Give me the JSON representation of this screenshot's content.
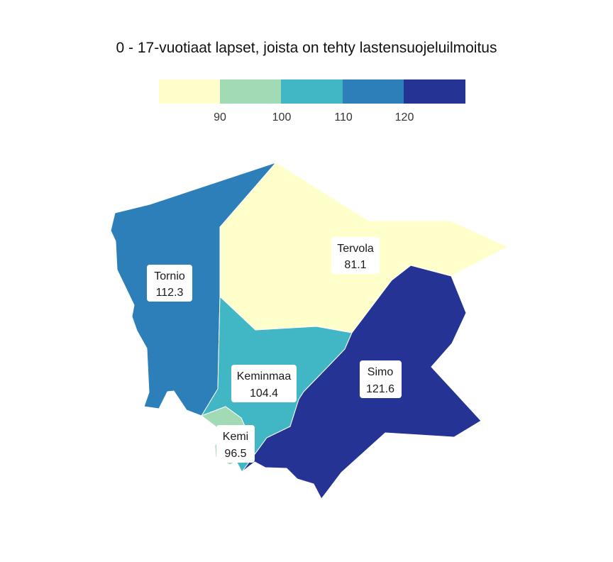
{
  "title": "0 - 17-vuotiaat lapset, joista on tehty lastensuojeluilmoitus",
  "legend": {
    "bins": [
      {
        "color": "#ffffcc"
      },
      {
        "color": "#a1dab4"
      },
      {
        "color": "#41b6c4"
      },
      {
        "color": "#2c7fb8"
      },
      {
        "color": "#253494"
      }
    ],
    "ticks": [
      "90",
      "100",
      "110",
      "120"
    ]
  },
  "regions": [
    {
      "name": "Tornio",
      "value": "112.3",
      "color": "#2c7fb8"
    },
    {
      "name": "Tervola",
      "value": "81.1",
      "color": "#ffffcc"
    },
    {
      "name": "Keminmaa",
      "value": "104.4",
      "color": "#41b6c4"
    },
    {
      "name": "Simo",
      "value": "121.6",
      "color": "#253494"
    },
    {
      "name": "Kemi",
      "value": "96.5",
      "color": "#a1dab4"
    }
  ]
}
